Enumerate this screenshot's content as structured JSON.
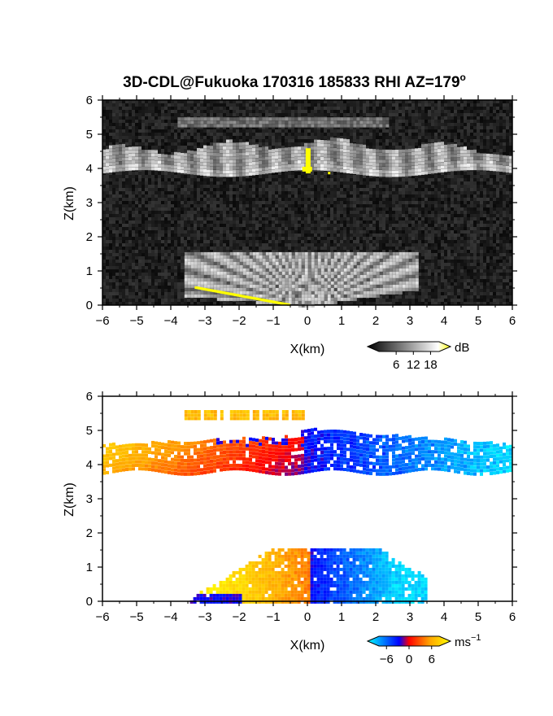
{
  "title": "3D-CDL@Fukuoka 170316 185833 RHI AZ=179",
  "title_superscript": "o",
  "chart_data": [
    {
      "type": "heatmap",
      "variable": "reflectivity",
      "xlabel": "X(km)",
      "ylabel": "Z(km)",
      "xlim": [
        -6,
        6
      ],
      "ylim": [
        0,
        6
      ],
      "xticks": [
        "-6",
        "-5",
        "-4",
        "-3",
        "-2",
        "-1",
        "0",
        "1",
        "2",
        "3",
        "4",
        "5",
        "6"
      ],
      "yticks": [
        "0",
        "1",
        "2",
        "3",
        "4",
        "5",
        "6"
      ],
      "colorbar": {
        "unit": "dB",
        "ticks": [
          "6",
          "12",
          "18"
        ],
        "range": [
          0,
          21
        ],
        "colors": [
          "#000000",
          "#ffffff",
          "#ffff00"
        ]
      },
      "layers": [
        {
          "x": [
            -6,
            6
          ],
          "z": [
            3.85,
            4.7
          ],
          "description_value": "upper echo layer"
        },
        {
          "x": [
            -3.5,
            3.5
          ],
          "z": [
            0,
            1.55
          ],
          "description_value": "lower echo layer"
        },
        {
          "x": [
            -3.3,
            -0.6
          ],
          "z": [
            0,
            0.5
          ],
          "value_db": 19
        },
        {
          "x": [
            -0.1,
            0.1
          ],
          "z": [
            3.9,
            4.7
          ],
          "value_db": 19
        }
      ]
    },
    {
      "type": "heatmap",
      "variable": "doppler_velocity",
      "xlabel": "X(km)",
      "ylabel": "Z(km)",
      "xlim": [
        -6,
        6
      ],
      "ylim": [
        0,
        6
      ],
      "xticks": [
        "-6",
        "-5",
        "-4",
        "-3",
        "-2",
        "-1",
        "0",
        "1",
        "2",
        "3",
        "4",
        "5",
        "6"
      ],
      "yticks": [
        "0",
        "1",
        "2",
        "3",
        "4",
        "5",
        "6"
      ],
      "colorbar": {
        "unit": "ms",
        "unit_superscript": "−1",
        "ticks": [
          "−6",
          "0",
          "6"
        ],
        "range": [
          -8,
          8
        ],
        "colors": [
          "#00ffff",
          "#0000ff",
          "#ff0000",
          "#ffa500",
          "#ffff00"
        ]
      },
      "layers": [
        {
          "x": [
            -6,
            6
          ],
          "z": [
            3.7,
            4.9
          ],
          "velocity_left": 5,
          "velocity_right": -6
        },
        {
          "x": [
            -4.2,
            3.5
          ],
          "z": [
            0,
            1.55
          ],
          "velocity_left": 6,
          "velocity_right": -7
        },
        {
          "x": [
            -3.6,
            -0.1
          ],
          "z": [
            5.3,
            5.5
          ],
          "velocity": 5
        }
      ]
    }
  ]
}
